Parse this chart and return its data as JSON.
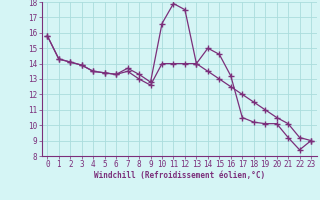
{
  "line1_x": [
    0,
    1,
    2,
    3,
    4,
    5,
    6,
    7,
    8,
    9,
    10,
    11,
    12,
    13,
    14,
    15,
    16,
    17,
    18,
    19,
    20,
    21,
    22,
    23
  ],
  "line1_y": [
    15.8,
    14.3,
    14.1,
    13.9,
    13.5,
    13.4,
    13.3,
    13.7,
    13.3,
    12.8,
    16.6,
    17.9,
    17.5,
    14.0,
    15.0,
    14.6,
    13.2,
    10.5,
    10.2,
    10.1,
    10.1,
    9.2,
    8.4,
    9.0
  ],
  "line2_x": [
    0,
    1,
    2,
    3,
    4,
    5,
    6,
    7,
    8,
    9,
    10,
    11,
    12,
    13,
    14,
    15,
    16,
    17,
    18,
    19,
    20,
    21,
    22,
    23
  ],
  "line2_y": [
    15.8,
    14.3,
    14.1,
    13.9,
    13.5,
    13.4,
    13.3,
    13.5,
    13.0,
    12.6,
    14.0,
    14.0,
    14.0,
    14.0,
    13.5,
    13.0,
    12.5,
    12.0,
    11.5,
    11.0,
    10.5,
    10.1,
    9.2,
    9.0
  ],
  "line_color": "#7b2f7b",
  "bg_color": "#d5f5f5",
  "grid_color": "#aadddd",
  "xlabel": "Windchill (Refroidissement éolien,°C)",
  "xlim": [
    -0.5,
    23.5
  ],
  "ylim": [
    8,
    18
  ],
  "xticks": [
    0,
    1,
    2,
    3,
    4,
    5,
    6,
    7,
    8,
    9,
    10,
    11,
    12,
    13,
    14,
    15,
    16,
    17,
    18,
    19,
    20,
    21,
    22,
    23
  ],
  "yticks": [
    8,
    9,
    10,
    11,
    12,
    13,
    14,
    15,
    16,
    17,
    18
  ],
  "xlabel_fontsize": 5.5,
  "tick_fontsize": 5.5,
  "marker": "+",
  "markersize": 4,
  "linewidth": 0.9
}
